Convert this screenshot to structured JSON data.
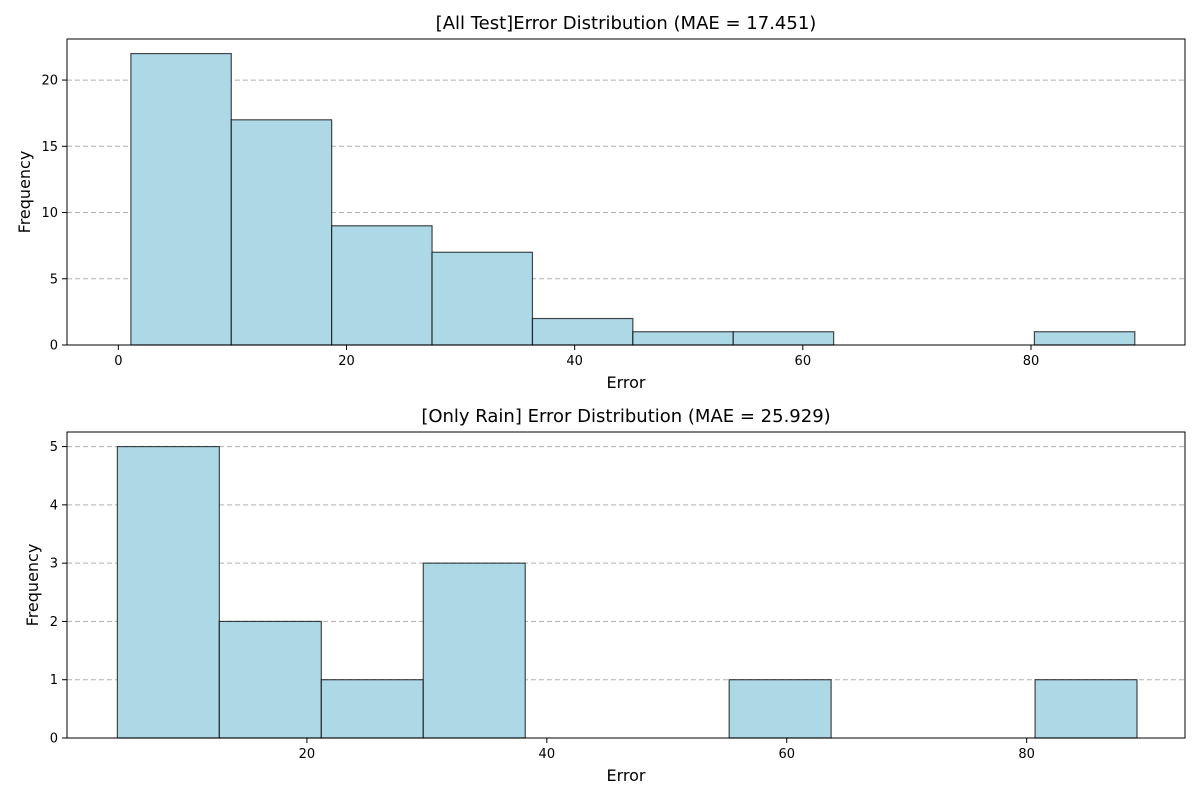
{
  "chart_data": [
    {
      "type": "bar",
      "title": "[All Test]Error Distribution (MAE = 17.451)",
      "xlabel": "Error",
      "ylabel": "Frequency",
      "xlim": [
        -4.5,
        93.5
      ],
      "ylim": [
        0,
        23.1
      ],
      "xticks": [
        0,
        20,
        40,
        60,
        80
      ],
      "yticks": [
        0,
        5,
        10,
        15,
        20
      ],
      "grid": "y-dashed",
      "bin_edges": [
        1.1,
        9.9,
        18.7,
        27.5,
        36.3,
        45.1,
        53.9,
        62.7,
        71.5,
        80.3,
        89.1
      ],
      "values": [
        22,
        17,
        9,
        7,
        2,
        1,
        1,
        0,
        0,
        1
      ],
      "bar_color": "#add8e6",
      "edge_color": "#000000"
    },
    {
      "type": "bar",
      "title": "[Only Rain] Error Distribution (MAE = 25.929)",
      "xlabel": "Error",
      "ylabel": "Frequency",
      "xlim": [
        0.0,
        93.2
      ],
      "ylim": [
        0,
        5.25
      ],
      "xticks": [
        20,
        40,
        60,
        80
      ],
      "yticks": [
        0,
        1,
        2,
        3,
        4,
        5
      ],
      "grid": "y-dashed",
      "bin_edges": [
        4.2,
        12.7,
        21.2,
        29.7,
        38.2,
        46.7,
        55.2,
        63.7,
        72.2,
        80.7,
        89.2
      ],
      "values": [
        5,
        2,
        1,
        3,
        0,
        0,
        1,
        0,
        0,
        1
      ],
      "bar_color": "#add8e6",
      "edge_color": "#000000"
    }
  ]
}
